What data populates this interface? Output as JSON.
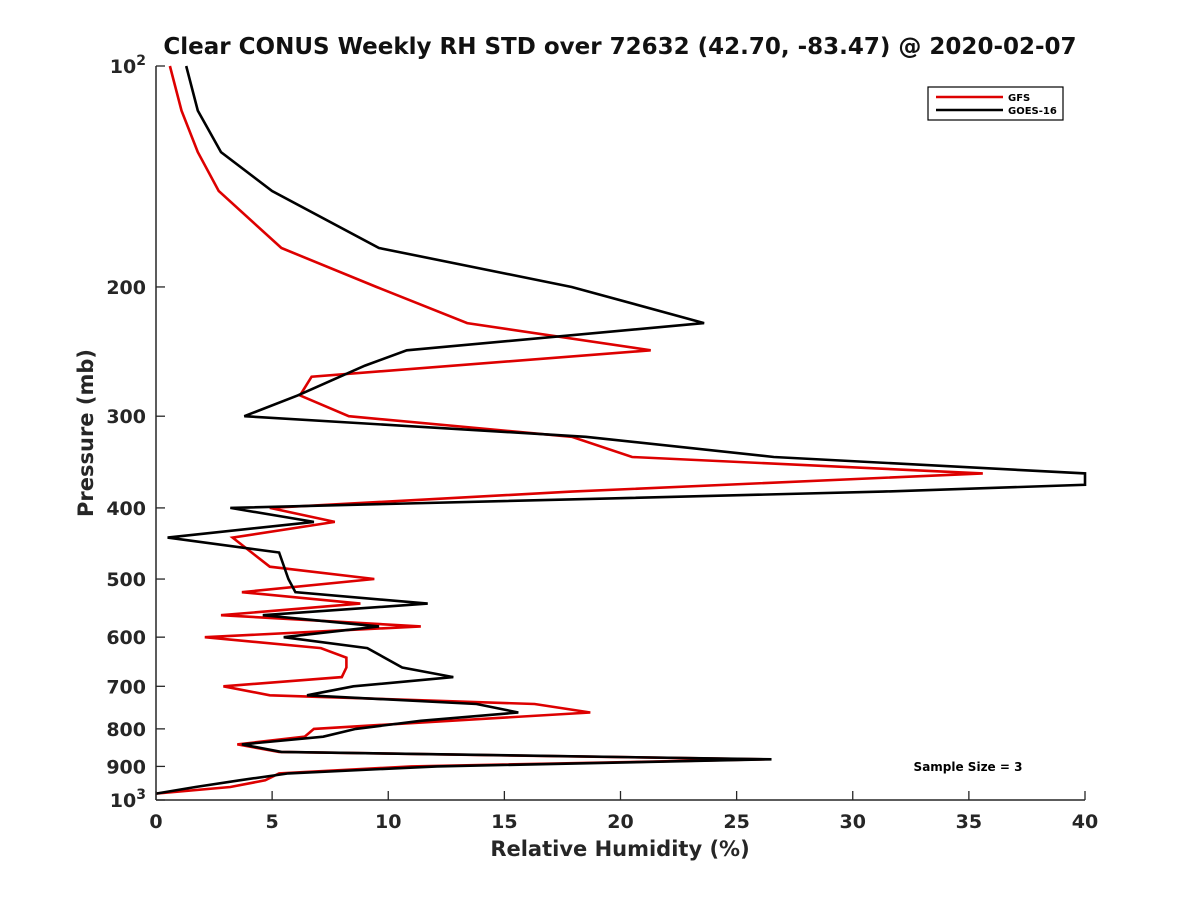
{
  "chart_data": {
    "type": "line",
    "title": "Clear CONUS Weekly RH STD over 72632 (42.70, -83.47) @ 2020-02-07",
    "xlabel": "Relative Humidity (%)",
    "ylabel": "Pressure (mb)",
    "xlim": [
      0,
      40
    ],
    "ylim": [
      100,
      1000
    ],
    "y_scale": "log",
    "y_reversed": true,
    "x_ticks": [
      0,
      5,
      10,
      15,
      20,
      25,
      30,
      35,
      40
    ],
    "x_tick_labels": [
      "0",
      "5",
      "10",
      "15",
      "20",
      "25",
      "30",
      "35",
      "40"
    ],
    "y_ticks": [
      100,
      200,
      300,
      400,
      500,
      600,
      700,
      800,
      900,
      1000
    ],
    "y_tick_labels": [
      {
        "base": "10",
        "exp": "2"
      },
      {
        "base": "200",
        "exp": ""
      },
      {
        "base": "300",
        "exp": ""
      },
      {
        "base": "400",
        "exp": ""
      },
      {
        "base": "500",
        "exp": ""
      },
      {
        "base": "600",
        "exp": ""
      },
      {
        "base": "700",
        "exp": ""
      },
      {
        "base": "800",
        "exp": ""
      },
      {
        "base": "900",
        "exp": ""
      },
      {
        "base": "10",
        "exp": "3"
      }
    ],
    "grid": false,
    "legend_position": "top-right",
    "annotation": "Sample Size = 3",
    "series": [
      {
        "name": "GFS",
        "color": "#dd0000",
        "points": [
          [
            0.6,
            100
          ],
          [
            1.1,
            115
          ],
          [
            1.8,
            131
          ],
          [
            2.7,
            148
          ],
          [
            5.4,
            177
          ],
          [
            9.5,
            200
          ],
          [
            13.4,
            224
          ],
          [
            21.3,
            244
          ],
          [
            6.7,
            265
          ],
          [
            6.2,
            281
          ],
          [
            8.3,
            300
          ],
          [
            17.9,
            320
          ],
          [
            20.5,
            341
          ],
          [
            35.6,
            359
          ],
          [
            17.9,
            380
          ],
          [
            4.9,
            400
          ],
          [
            7.7,
            418
          ],
          [
            3.3,
            439
          ],
          [
            4.9,
            481
          ],
          [
            9.4,
            500
          ],
          [
            3.7,
            521
          ],
          [
            8.8,
            540
          ],
          [
            2.8,
            560
          ],
          [
            11.4,
            580
          ],
          [
            2.1,
            600
          ],
          [
            7.1,
            621
          ],
          [
            8.2,
            640
          ],
          [
            8.2,
            660
          ],
          [
            8.0,
            680
          ],
          [
            2.9,
            700
          ],
          [
            4.9,
            720
          ],
          [
            16.3,
            740
          ],
          [
            18.7,
            760
          ],
          [
            6.8,
            800
          ],
          [
            6.4,
            820
          ],
          [
            3.5,
            840
          ],
          [
            5.3,
            860
          ],
          [
            26.2,
            880
          ],
          [
            11.0,
            900
          ],
          [
            5.3,
            920
          ],
          [
            4.7,
            940
          ],
          [
            3.2,
            960
          ],
          [
            0.0,
            980
          ]
        ]
      },
      {
        "name": "GOES-16",
        "color": "#000000",
        "points": [
          [
            1.3,
            100
          ],
          [
            1.8,
            115
          ],
          [
            2.8,
            131
          ],
          [
            5.0,
            148
          ],
          [
            9.6,
            177
          ],
          [
            17.9,
            200
          ],
          [
            23.6,
            224
          ],
          [
            10.8,
            244
          ],
          [
            9.0,
            256
          ],
          [
            6.1,
            281
          ],
          [
            3.8,
            300
          ],
          [
            18.5,
            320
          ],
          [
            26.6,
            341
          ],
          [
            40.0,
            359
          ],
          [
            40.0,
            372
          ],
          [
            31.3,
            380
          ],
          [
            3.2,
            400
          ],
          [
            6.8,
            418
          ],
          [
            0.5,
            439
          ],
          [
            5.3,
            460
          ],
          [
            5.7,
            500
          ],
          [
            6.0,
            521
          ],
          [
            11.7,
            540
          ],
          [
            4.6,
            560
          ],
          [
            9.6,
            580
          ],
          [
            5.5,
            600
          ],
          [
            9.1,
            621
          ],
          [
            10.6,
            660
          ],
          [
            12.8,
            680
          ],
          [
            8.5,
            700
          ],
          [
            6.5,
            720
          ],
          [
            13.8,
            740
          ],
          [
            15.6,
            760
          ],
          [
            11.4,
            780
          ],
          [
            8.6,
            800
          ],
          [
            7.2,
            820
          ],
          [
            3.7,
            840
          ],
          [
            5.4,
            860
          ],
          [
            26.5,
            880
          ],
          [
            12.1,
            900
          ],
          [
            5.7,
            920
          ],
          [
            3.6,
            940
          ],
          [
            1.7,
            960
          ],
          [
            0.0,
            980
          ]
        ]
      }
    ]
  }
}
